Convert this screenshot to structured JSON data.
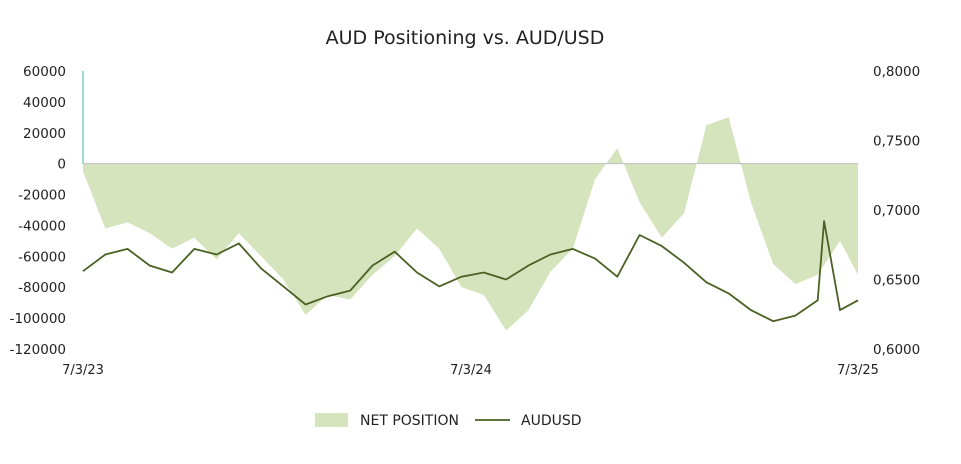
{
  "chart_data": {
    "type": "area",
    "title": "AUD Positioning vs. AUD/USD",
    "xlabel": "",
    "ylabel": "",
    "x_ticks": [
      "7/3/23",
      "7/3/24",
      "7/3/25"
    ],
    "x_range": [
      "2023-07-03",
      "2025-07-03"
    ],
    "y_left": {
      "ticks": [
        "60000",
        "40000",
        "20000",
        "0",
        "-20000",
        "-40000",
        "-60000",
        "-80000",
        "-100000",
        "-120000"
      ],
      "range": [
        -120000,
        60000
      ]
    },
    "y_right": {
      "ticks": [
        "0,8000",
        "0,7500",
        "0,7000",
        "0,6500",
        "0,6000"
      ],
      "range": [
        0.6,
        0.8
      ]
    },
    "legend": {
      "position": "bottom"
    },
    "grid": false,
    "colors": {
      "net_position": "#d6e4be",
      "audusd": "#4a6123",
      "axis": "#bfbfbf",
      "left_axis_line": "#3ab5b5"
    },
    "series": [
      {
        "name": "NET POSITION",
        "type": "area",
        "axis": "left",
        "x": [
          "2023-07-03",
          "2023-07-24",
          "2023-08-14",
          "2023-09-04",
          "2023-09-25",
          "2023-10-16",
          "2023-11-06",
          "2023-11-27",
          "2023-12-18",
          "2024-01-08",
          "2024-01-29",
          "2024-02-19",
          "2024-03-11",
          "2024-04-01",
          "2024-04-22",
          "2024-05-13",
          "2024-06-03",
          "2024-06-24",
          "2024-07-15",
          "2024-08-05",
          "2024-08-26",
          "2024-09-16",
          "2024-10-07",
          "2024-10-28",
          "2024-11-18",
          "2024-12-09",
          "2024-12-30",
          "2025-01-20",
          "2025-02-10",
          "2025-03-03",
          "2025-03-24",
          "2025-04-14",
          "2025-05-05",
          "2025-05-26",
          "2025-06-16",
          "2025-07-03"
        ],
        "values": [
          -5000,
          -42000,
          -38000,
          -45000,
          -55000,
          -48000,
          -62000,
          -45000,
          -60000,
          -75000,
          -98000,
          -85000,
          -88000,
          -72000,
          -60000,
          -42000,
          -55000,
          -80000,
          -85000,
          -108000,
          -95000,
          -70000,
          -55000,
          -10000,
          10000,
          -25000,
          -48000,
          -32000,
          25000,
          30000,
          -25000,
          -65000,
          -78000,
          -72000,
          -50000,
          -72000
        ]
      },
      {
        "name": "AUDUSD",
        "type": "line",
        "axis": "right",
        "x": [
          "2023-07-03",
          "2023-07-24",
          "2023-08-14",
          "2023-09-04",
          "2023-09-25",
          "2023-10-16",
          "2023-11-06",
          "2023-11-27",
          "2023-12-18",
          "2024-01-08",
          "2024-01-29",
          "2024-02-19",
          "2024-03-11",
          "2024-04-01",
          "2024-04-22",
          "2024-05-13",
          "2024-06-03",
          "2024-06-24",
          "2024-07-15",
          "2024-08-05",
          "2024-08-26",
          "2024-09-16",
          "2024-10-07",
          "2024-10-28",
          "2024-11-18",
          "2024-12-09",
          "2024-12-30",
          "2025-01-20",
          "2025-02-10",
          "2025-03-03",
          "2025-03-24",
          "2025-04-14",
          "2025-05-05",
          "2025-05-26",
          "2025-06-01",
          "2025-06-16",
          "2025-07-03"
        ],
        "values": [
          0.656,
          0.668,
          0.672,
          0.66,
          0.655,
          0.672,
          0.668,
          0.676,
          0.658,
          0.645,
          0.632,
          0.638,
          0.642,
          0.66,
          0.67,
          0.655,
          0.645,
          0.652,
          0.655,
          0.65,
          0.66,
          0.668,
          0.672,
          0.665,
          0.652,
          0.682,
          0.674,
          0.662,
          0.648,
          0.64,
          0.628,
          0.62,
          0.624,
          0.635,
          0.692,
          0.628,
          0.635
        ]
      }
    ]
  }
}
